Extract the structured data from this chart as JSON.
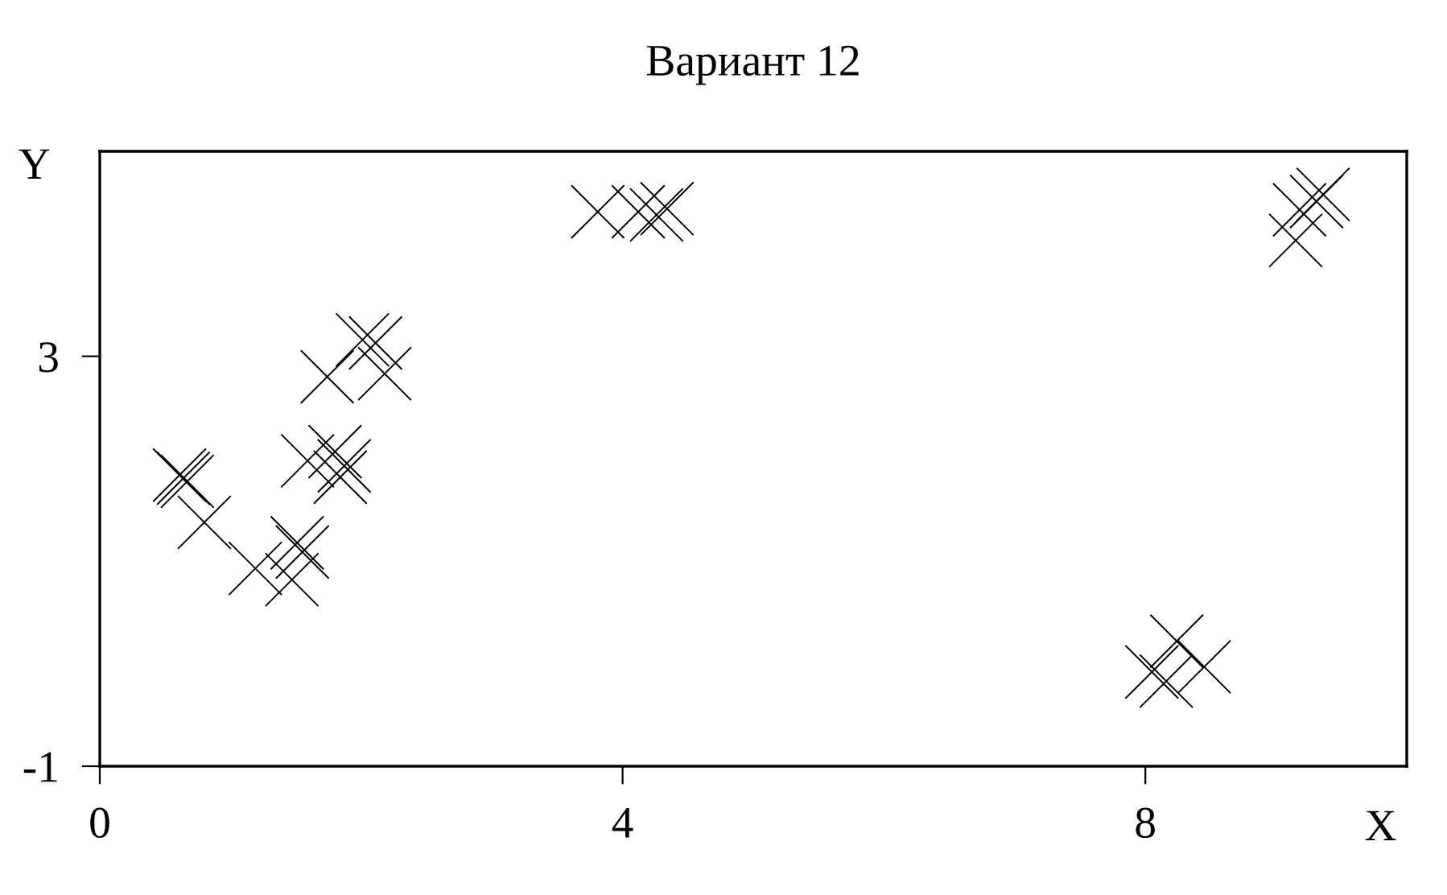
{
  "chart_data": {
    "type": "scatter",
    "title": "Вариант 12",
    "xlabel": "X",
    "ylabel": "Y",
    "x": [
      0.61,
      0.64,
      0.67,
      0.8,
      1.19,
      1.51,
      1.55,
      1.47,
      1.59,
      1.8,
      1.87,
      1.84,
      1.74,
      2.01,
      2.11,
      2.18,
      3.81,
      4.12,
      4.26,
      4.34,
      8.24,
      8.45,
      8.05,
      8.16,
      9.36,
      9.31,
      9.18,
      9.15
    ],
    "values": [
      1.84,
      1.81,
      1.78,
      1.38,
      0.93,
      1.18,
      1.09,
      0.82,
      1.98,
      2.07,
      1.93,
      1.82,
      2.8,
      3.16,
      3.13,
      2.83,
      4.41,
      4.41,
      4.38,
      4.44,
      0.22,
      -0.03,
      -0.08,
      -0.17,
      4.58,
      4.51,
      4.43,
      4.13
    ],
    "color": "#000000",
    "marker": "cross",
    "grid": false,
    "legend": false,
    "xlim": [
      0,
      10
    ],
    "ylim": [
      -1,
      5
    ],
    "xticks": [
      0,
      4,
      8
    ],
    "yticks": [
      -1,
      3
    ]
  }
}
